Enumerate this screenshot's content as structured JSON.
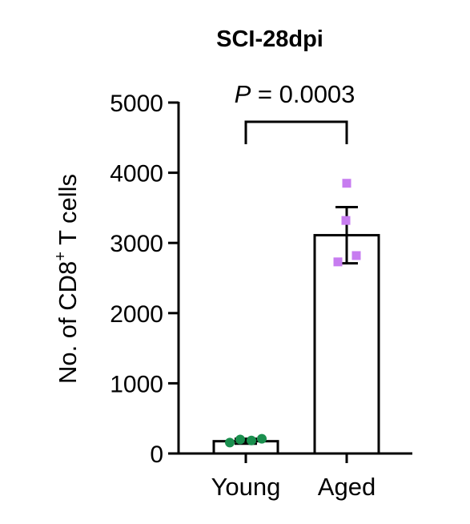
{
  "chart_data": {
    "type": "bar",
    "title": "SCI-28dpi",
    "ylabel": {
      "main": "No. of CD8",
      "superscript": "+",
      "tail": " T cells"
    },
    "xlabel": "",
    "ylim": [
      0,
      5000
    ],
    "yticks": [
      0,
      1000,
      2000,
      3000,
      4000,
      5000
    ],
    "yticks_labels": [
      "0",
      "1000",
      "2000",
      "3000",
      "4000",
      "5000"
    ],
    "categories": [
      "Young",
      "Aged"
    ],
    "values": [
      175,
      3110
    ],
    "error": [
      35,
      400
    ],
    "points": [
      [
        155,
        200,
        185,
        210
      ],
      [
        3850,
        3320,
        2820,
        2730
      ]
    ],
    "marker_shapes": [
      "circle",
      "square"
    ],
    "point_colors": [
      "#1a8f4e",
      "#c77cf0"
    ],
    "bar_fill": "#ffffff",
    "bar_stroke": "#000000",
    "annotation": {
      "italic": "P",
      "rest": " = 0.0003"
    }
  }
}
